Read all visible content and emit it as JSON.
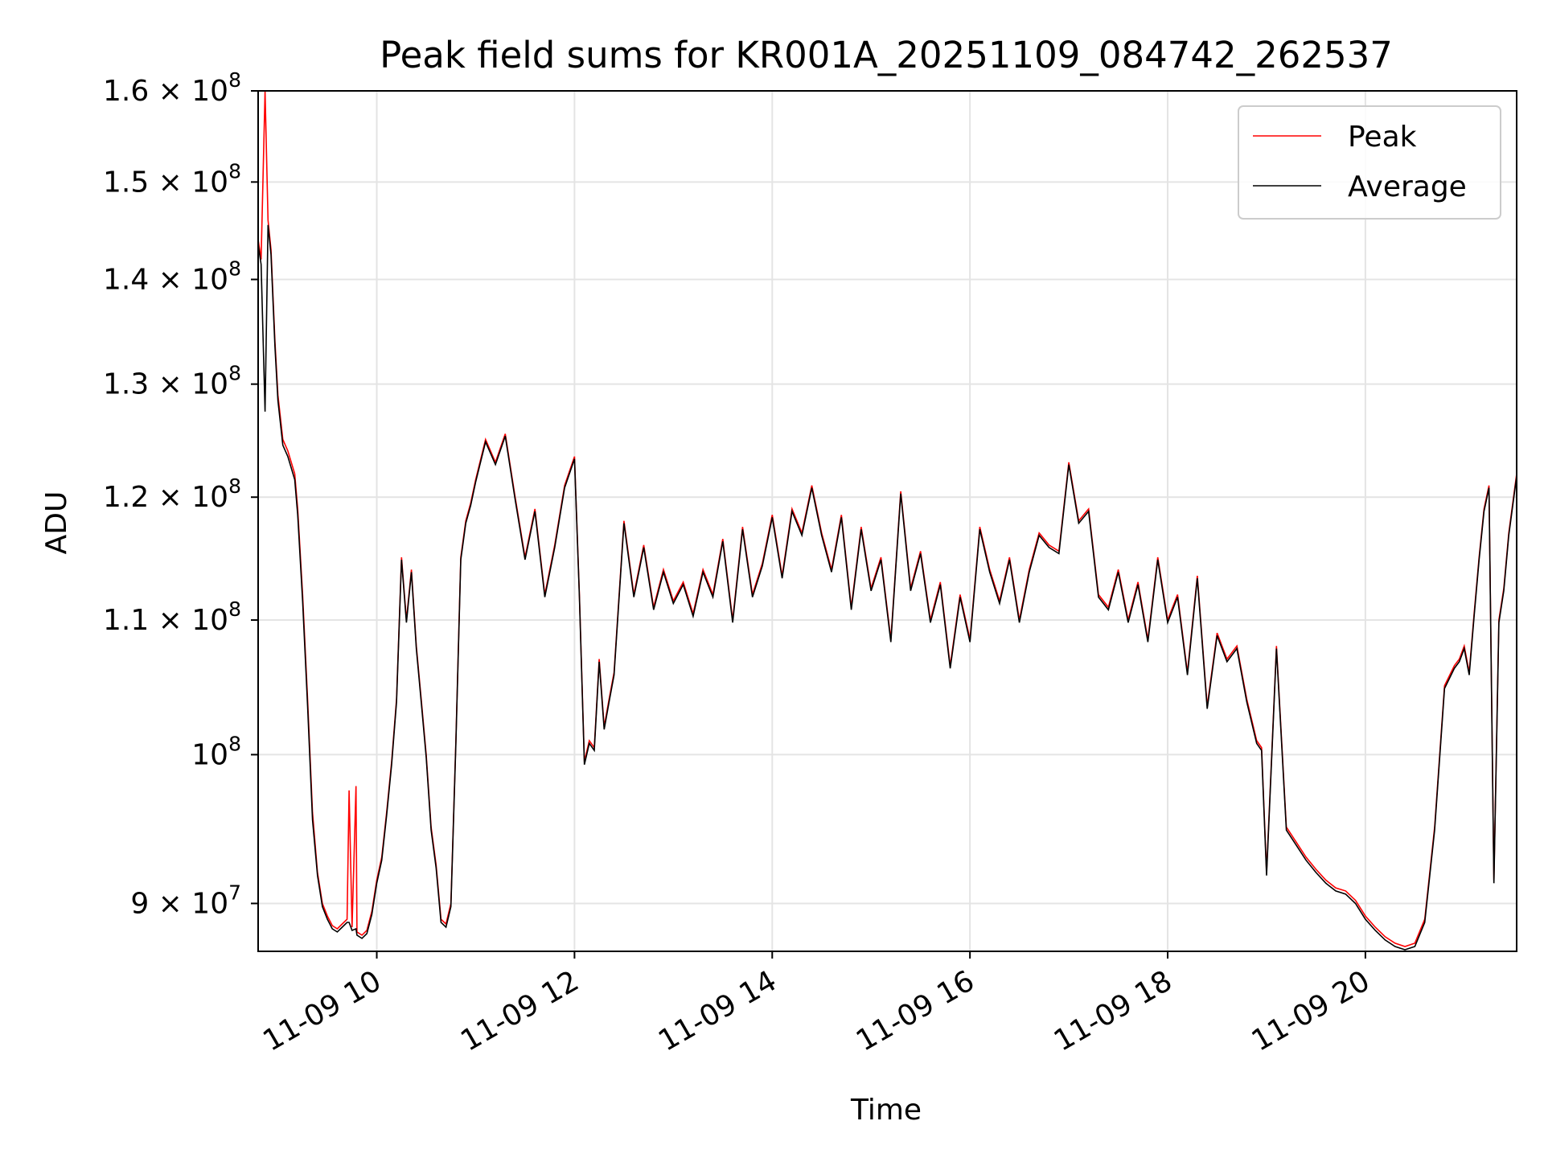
{
  "chart_data": {
    "type": "line",
    "title": "Peak field sums for KR001A_20251109_084742_262537",
    "xlabel": "Time",
    "ylabel": "ADU",
    "yscale": "log",
    "ylim": [
      87000000,
      160000000
    ],
    "xlim_hours": [
      8.8,
      21.53
    ],
    "grid": true,
    "legend_position": "top-right",
    "x_ticks": [
      {
        "hour": 10,
        "label": "11-09 10"
      },
      {
        "hour": 12,
        "label": "11-09 12"
      },
      {
        "hour": 14,
        "label": "11-09 14"
      },
      {
        "hour": 16,
        "label": "11-09 16"
      },
      {
        "hour": 18,
        "label": "11-09 18"
      },
      {
        "hour": 20,
        "label": "11-09 20"
      }
    ],
    "y_ticks": [
      {
        "value": 90000000,
        "mant": "9",
        "times": "×",
        "base": "10",
        "exp": "7"
      },
      {
        "value": 100000000,
        "mant": "",
        "times": "",
        "base": "10",
        "exp": "8"
      },
      {
        "value": 110000000,
        "mant": "1.1",
        "times": "×",
        "base": "10",
        "exp": "8"
      },
      {
        "value": 120000000,
        "mant": "1.2",
        "times": "×",
        "base": "10",
        "exp": "8"
      },
      {
        "value": 130000000,
        "mant": "1.3",
        "times": "×",
        "base": "10",
        "exp": "8"
      },
      {
        "value": 140000000,
        "mant": "1.4",
        "times": "×",
        "base": "10",
        "exp": "8"
      },
      {
        "value": 150000000,
        "mant": "1.5",
        "times": "×",
        "base": "10",
        "exp": "8"
      },
      {
        "value": 160000000,
        "mant": "1.6",
        "times": "×",
        "base": "10",
        "exp": "8"
      }
    ],
    "series": [
      {
        "name": "Peak",
        "color": "#ff0000",
        "hours": [
          8.8,
          8.83,
          8.87,
          8.9,
          8.93,
          8.97,
          9.0,
          9.05,
          9.1,
          9.17,
          9.2,
          9.25,
          9.3,
          9.35,
          9.4,
          9.45,
          9.5,
          9.55,
          9.6,
          9.65,
          9.7,
          9.72,
          9.75,
          9.79,
          9.8,
          9.85,
          9.9,
          9.95,
          10.0,
          10.05,
          10.1,
          10.15,
          10.2,
          10.25,
          10.3,
          10.35,
          10.4,
          10.45,
          10.5,
          10.55,
          10.6,
          10.65,
          10.7,
          10.75,
          10.8,
          10.85,
          10.9,
          10.95,
          11.0,
          11.1,
          11.2,
          11.3,
          11.4,
          11.5,
          11.6,
          11.7,
          11.8,
          11.9,
          12.0,
          12.05,
          12.1,
          12.15,
          12.2,
          12.25,
          12.3,
          12.35,
          12.4,
          12.5,
          12.6,
          12.7,
          12.8,
          12.9,
          13.0,
          13.1,
          13.2,
          13.3,
          13.4,
          13.5,
          13.6,
          13.7,
          13.8,
          13.9,
          14.0,
          14.1,
          14.2,
          14.3,
          14.4,
          14.5,
          14.6,
          14.7,
          14.8,
          14.9,
          15.0,
          15.1,
          15.2,
          15.3,
          15.4,
          15.5,
          15.6,
          15.7,
          15.8,
          15.9,
          16.0,
          16.1,
          16.2,
          16.3,
          16.4,
          16.5,
          16.6,
          16.7,
          16.8,
          16.9,
          17.0,
          17.1,
          17.2,
          17.3,
          17.4,
          17.5,
          17.6,
          17.7,
          17.8,
          17.9,
          18.0,
          18.1,
          18.2,
          18.3,
          18.4,
          18.5,
          18.6,
          18.7,
          18.8,
          18.9,
          18.95,
          19.0,
          19.1,
          19.2,
          19.3,
          19.4,
          19.5,
          19.6,
          19.7,
          19.8,
          19.9,
          20.0,
          20.1,
          20.2,
          20.3,
          20.4,
          20.5,
          20.6,
          20.7,
          20.8,
          20.9,
          20.95,
          21.0,
          21.05,
          21.1,
          21.15,
          21.2,
          21.25,
          21.3,
          21.35,
          21.4,
          21.45,
          21.53
        ],
        "values": [
          144000000,
          142000000,
          160000000,
          146000000,
          143000000,
          134000000,
          129000000,
          125000000,
          124000000,
          122000000,
          119000000,
          112000000,
          104000000,
          96000000,
          92000000,
          90000000,
          89200000,
          88600000,
          88400000,
          88700000,
          89000000,
          97500000,
          88500000,
          97800000,
          88200000,
          88000000,
          88300000,
          89500000,
          91500000,
          93000000,
          96000000,
          99500000,
          104000000,
          115000000,
          110000000,
          114000000,
          108000000,
          104000000,
          100000000,
          95000000,
          92500000,
          89000000,
          88700000,
          90000000,
          101000000,
          115000000,
          118000000,
          119500000,
          121500000,
          125000000,
          123000000,
          125500000,
          120000000,
          115000000,
          119000000,
          112000000,
          116000000,
          121000000,
          123500000,
          112000000,
          99500000,
          101000000,
          100500000,
          107000000,
          102000000,
          104000000,
          106000000,
          118000000,
          112000000,
          116000000,
          111000000,
          114000000,
          111500000,
          113000000,
          110500000,
          114000000,
          112000000,
          116500000,
          110000000,
          117500000,
          112000000,
          114500000,
          118500000,
          113500000,
          119000000,
          117000000,
          121000000,
          117000000,
          114000000,
          118500000,
          111000000,
          117500000,
          112500000,
          115000000,
          108500000,
          120500000,
          112500000,
          115500000,
          110000000,
          113000000,
          106500000,
          112000000,
          108500000,
          117500000,
          114000000,
          111500000,
          115000000,
          110000000,
          114000000,
          117000000,
          116000000,
          115500000,
          123000000,
          118000000,
          119000000,
          112000000,
          111000000,
          114000000,
          110000000,
          113000000,
          108500000,
          115000000,
          110000000,
          112000000,
          106000000,
          113500000,
          103500000,
          109000000,
          107000000,
          108000000,
          104000000,
          101000000,
          100500000,
          92000000,
          108000000,
          95000000,
          94000000,
          93000000,
          92200000,
          91500000,
          91000000,
          90800000,
          90200000,
          89200000,
          88500000,
          87900000,
          87500000,
          87300000,
          87500000,
          89000000,
          95000000,
          105000000,
          106500000,
          107000000,
          108000000,
          106000000,
          110500000,
          115000000,
          119000000,
          121000000,
          91500000,
          110000000,
          112500000,
          117000000,
          122000000
        ]
      },
      {
        "name": "Average",
        "color": "#000000",
        "hours": [
          8.8,
          8.83,
          8.87,
          8.9,
          8.93,
          8.97,
          9.0,
          9.05,
          9.1,
          9.17,
          9.2,
          9.25,
          9.3,
          9.35,
          9.4,
          9.45,
          9.5,
          9.55,
          9.6,
          9.65,
          9.7,
          9.72,
          9.75,
          9.79,
          9.8,
          9.85,
          9.9,
          9.95,
          10.0,
          10.05,
          10.1,
          10.15,
          10.2,
          10.25,
          10.3,
          10.35,
          10.4,
          10.45,
          10.5,
          10.55,
          10.6,
          10.65,
          10.7,
          10.75,
          10.8,
          10.85,
          10.9,
          10.95,
          11.0,
          11.1,
          11.2,
          11.3,
          11.4,
          11.5,
          11.6,
          11.7,
          11.8,
          11.9,
          12.0,
          12.05,
          12.1,
          12.15,
          12.2,
          12.25,
          12.3,
          12.35,
          12.4,
          12.5,
          12.6,
          12.7,
          12.8,
          12.9,
          13.0,
          13.1,
          13.2,
          13.3,
          13.4,
          13.5,
          13.6,
          13.7,
          13.8,
          13.9,
          14.0,
          14.1,
          14.2,
          14.3,
          14.4,
          14.5,
          14.6,
          14.7,
          14.8,
          14.9,
          15.0,
          15.1,
          15.2,
          15.3,
          15.4,
          15.5,
          15.6,
          15.7,
          15.8,
          15.9,
          16.0,
          16.1,
          16.2,
          16.3,
          16.4,
          16.5,
          16.6,
          16.7,
          16.8,
          16.9,
          17.0,
          17.1,
          17.2,
          17.3,
          17.4,
          17.5,
          17.6,
          17.7,
          17.8,
          17.9,
          18.0,
          18.1,
          18.2,
          18.3,
          18.4,
          18.5,
          18.6,
          18.7,
          18.8,
          18.9,
          18.95,
          19.0,
          19.1,
          19.2,
          19.3,
          19.4,
          19.5,
          19.6,
          19.7,
          19.8,
          19.9,
          20.0,
          20.1,
          20.2,
          20.3,
          20.4,
          20.5,
          20.6,
          20.7,
          20.8,
          20.9,
          20.95,
          21.0,
          21.05,
          21.1,
          21.15,
          21.2,
          21.25,
          21.3,
          21.35,
          21.4,
          21.45,
          21.53
        ],
        "values": [
          143500000,
          141500000,
          127500000,
          145500000,
          142500000,
          133500000,
          128500000,
          124500000,
          123500000,
          121500000,
          118500000,
          111500000,
          103500000,
          95500000,
          91800000,
          89800000,
          89000000,
          88400000,
          88200000,
          88500000,
          88800000,
          88800000,
          88300000,
          88400000,
          88000000,
          87800000,
          88100000,
          89300000,
          91300000,
          92800000,
          95800000,
          99300000,
          103800000,
          114800000,
          109800000,
          113800000,
          107800000,
          103800000,
          99800000,
          94800000,
          92300000,
          88800000,
          88500000,
          89800000,
          100800000,
          114800000,
          117800000,
          119300000,
          121300000,
          124800000,
          122800000,
          125300000,
          119800000,
          114800000,
          118800000,
          111800000,
          115800000,
          120800000,
          123300000,
          111800000,
          99300000,
          100800000,
          100300000,
          106800000,
          101800000,
          103800000,
          105800000,
          117800000,
          111800000,
          115800000,
          110800000,
          113800000,
          111300000,
          112800000,
          110300000,
          113800000,
          111800000,
          116300000,
          109800000,
          117300000,
          111800000,
          114300000,
          118300000,
          113300000,
          118800000,
          116800000,
          120800000,
          116800000,
          113800000,
          118300000,
          110800000,
          117300000,
          112300000,
          114800000,
          108300000,
          120300000,
          112300000,
          115300000,
          109800000,
          112800000,
          106300000,
          111800000,
          108300000,
          117300000,
          113800000,
          111300000,
          114800000,
          109800000,
          113800000,
          116800000,
          115800000,
          115300000,
          122800000,
          117800000,
          118800000,
          111800000,
          110800000,
          113800000,
          109800000,
          112800000,
          108300000,
          114800000,
          109800000,
          111800000,
          105800000,
          113300000,
          103300000,
          108800000,
          106800000,
          107800000,
          103800000,
          100800000,
          100300000,
          91800000,
          107800000,
          94800000,
          93800000,
          92800000,
          92000000,
          91300000,
          90800000,
          90600000,
          90000000,
          89000000,
          88300000,
          87700000,
          87300000,
          87100000,
          87300000,
          88800000,
          94800000,
          104800000,
          106300000,
          106800000,
          107800000,
          105800000,
          110300000,
          114800000,
          118800000,
          120800000,
          91300000,
          109800000,
          112300000,
          116800000,
          121800000
        ]
      }
    ]
  }
}
